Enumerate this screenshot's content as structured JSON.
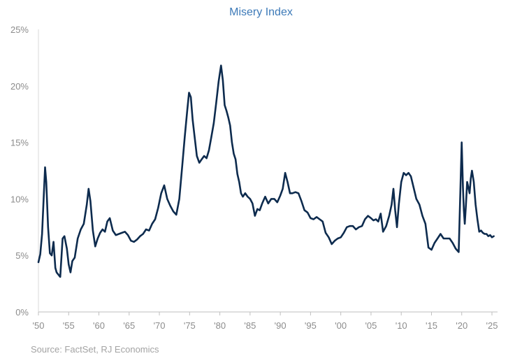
{
  "chart_data": {
    "type": "line",
    "title": "Misery Index",
    "xlabel": "",
    "ylabel": "",
    "xlim": [
      1950,
      2025.5
    ],
    "ylim": [
      0,
      25
    ],
    "y_ticks": [
      "0%",
      "5%",
      "10%",
      "15%",
      "20%",
      "25%"
    ],
    "x_ticks": [
      "'50",
      "'55",
      "'60",
      "'65",
      "'70",
      "'75",
      "'80",
      "'85",
      "'90",
      "'95",
      "'00",
      "'05",
      "'10",
      "'15",
      "'20",
      "'25"
    ],
    "grid": false,
    "line_color": "#0d2b4e",
    "series": [
      {
        "name": "",
        "x": [
          1950.0,
          1950.3,
          1950.6,
          1950.9,
          1951.1,
          1951.3,
          1951.6,
          1951.9,
          1952.2,
          1952.5,
          1952.8,
          1953.0,
          1953.3,
          1953.6,
          1954.0,
          1954.3,
          1954.7,
          1955.0,
          1955.3,
          1955.6,
          1956.0,
          1956.5,
          1957.0,
          1957.5,
          1958.0,
          1958.3,
          1958.6,
          1959.0,
          1959.4,
          1959.8,
          1960.2,
          1960.6,
          1961.0,
          1961.4,
          1961.8,
          1962.3,
          1962.8,
          1963.3,
          1963.8,
          1964.3,
          1964.8,
          1965.3,
          1965.8,
          1966.3,
          1966.8,
          1967.3,
          1967.8,
          1968.3,
          1968.8,
          1969.3,
          1969.8,
          1970.3,
          1970.8,
          1971.3,
          1971.8,
          1972.3,
          1972.8,
          1973.3,
          1973.8,
          1974.2,
          1974.6,
          1974.9,
          1975.2,
          1975.5,
          1975.8,
          1976.2,
          1976.6,
          1977.0,
          1977.4,
          1977.8,
          1978.2,
          1978.6,
          1979.0,
          1979.4,
          1979.8,
          1980.2,
          1980.5,
          1980.8,
          1981.1,
          1981.4,
          1981.7,
          1982.0,
          1982.3,
          1982.6,
          1982.9,
          1983.2,
          1983.5,
          1983.8,
          1984.2,
          1984.6,
          1985.0,
          1985.4,
          1985.8,
          1986.2,
          1986.6,
          1987.0,
          1987.5,
          1988.0,
          1988.5,
          1989.0,
          1989.5,
          1990.0,
          1990.4,
          1990.8,
          1991.2,
          1991.6,
          1992.0,
          1992.5,
          1993.0,
          1993.5,
          1994.0,
          1994.5,
          1995.0,
          1995.5,
          1996.0,
          1996.5,
          1997.0,
          1997.5,
          1998.0,
          1998.5,
          1999.0,
          1999.5,
          2000.0,
          2000.5,
          2001.0,
          2001.5,
          2002.0,
          2002.5,
          2003.0,
          2003.5,
          2004.0,
          2004.5,
          2005.0,
          2005.4,
          2005.8,
          2006.2,
          2006.6,
          2007.0,
          2007.5,
          2008.0,
          2008.4,
          2008.7,
          2009.0,
          2009.3,
          2009.6,
          2010.0,
          2010.4,
          2010.8,
          2011.2,
          2011.6,
          2012.0,
          2012.5,
          2013.0,
          2013.5,
          2014.0,
          2014.5,
          2015.0,
          2015.5,
          2016.0,
          2016.5,
          2017.0,
          2017.5,
          2018.0,
          2018.5,
          2019.0,
          2019.5,
          2020.0,
          2020.2,
          2020.35,
          2020.5,
          2020.7,
          2020.9,
          2021.1,
          2021.3,
          2021.5,
          2021.7,
          2022.0,
          2022.3,
          2022.6,
          2022.9,
          2023.2,
          2023.5,
          2023.8,
          2024.1,
          2024.4,
          2024.7,
          2025.0,
          2025.3
        ],
        "y": [
          4.4,
          5.1,
          6.9,
          10.5,
          12.8,
          11.5,
          7.5,
          5.2,
          5.0,
          6.2,
          3.9,
          3.5,
          3.3,
          3.1,
          6.5,
          6.7,
          5.6,
          4.2,
          3.5,
          4.5,
          4.8,
          6.5,
          7.3,
          7.8,
          9.5,
          10.9,
          9.8,
          7.2,
          5.8,
          6.5,
          7.0,
          7.3,
          7.1,
          8.0,
          8.3,
          7.2,
          6.8,
          6.9,
          7.0,
          7.1,
          6.8,
          6.3,
          6.2,
          6.4,
          6.7,
          6.9,
          7.3,
          7.2,
          7.8,
          8.2,
          9.2,
          10.5,
          11.2,
          10.0,
          9.4,
          8.9,
          8.6,
          10.0,
          13.0,
          15.5,
          17.8,
          19.4,
          19.0,
          17.0,
          15.6,
          13.8,
          13.2,
          13.5,
          13.8,
          13.6,
          14.3,
          15.5,
          16.7,
          18.5,
          20.4,
          21.8,
          20.5,
          18.3,
          17.8,
          17.2,
          16.5,
          15.0,
          14.0,
          13.5,
          12.2,
          11.5,
          10.5,
          10.2,
          10.5,
          10.2,
          10.0,
          9.6,
          8.5,
          9.1,
          9.0,
          9.6,
          10.2,
          9.6,
          10.0,
          10.0,
          9.7,
          10.3,
          10.9,
          12.3,
          11.5,
          10.5,
          10.5,
          10.6,
          10.5,
          9.8,
          9.0,
          8.8,
          8.3,
          8.2,
          8.4,
          8.2,
          8.0,
          7.0,
          6.6,
          6.0,
          6.3,
          6.5,
          6.6,
          7.0,
          7.5,
          7.6,
          7.6,
          7.3,
          7.5,
          7.6,
          8.2,
          8.5,
          8.3,
          8.1,
          8.2,
          8.0,
          8.7,
          7.1,
          7.6,
          8.5,
          9.5,
          10.9,
          9.0,
          7.5,
          9.5,
          11.5,
          12.3,
          12.1,
          12.3,
          12.0,
          11.1,
          10.0,
          9.5,
          8.5,
          7.8,
          5.7,
          5.5,
          6.1,
          6.5,
          6.9,
          6.5,
          6.5,
          6.5,
          6.1,
          5.6,
          5.3,
          15.0,
          11.0,
          9.0,
          7.8,
          9.5,
          11.5,
          11.0,
          10.5,
          11.8,
          12.5,
          11.5,
          9.5,
          8.2,
          7.1,
          7.2,
          7.0,
          6.9,
          6.9,
          6.7,
          6.8,
          6.6,
          6.7
        ]
      }
    ],
    "source_note": "Source: FactSet, RJ Economics"
  }
}
